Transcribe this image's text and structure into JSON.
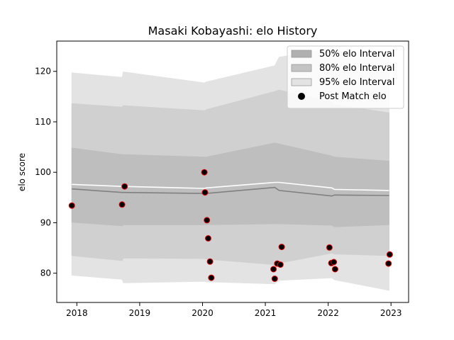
{
  "chart_data": {
    "type": "area",
    "title": "Masaki Kobayashi: elo History",
    "xlabel": "",
    "ylabel": "elo score",
    "xlim": [
      2017.68,
      2023.28
    ],
    "ylim": [
      74.2,
      126.0
    ],
    "x_ticks": [
      2018,
      2019,
      2020,
      2021,
      2022,
      2023
    ],
    "y_ticks": [
      80,
      90,
      100,
      110,
      120
    ],
    "grid": false,
    "legend_position": "top-right",
    "legend": [
      {
        "label": "50% elo Interval",
        "kind": "patch",
        "color": "#b0b0b0"
      },
      {
        "label": "80% elo Interval",
        "kind": "patch",
        "color": "#c4c4c4"
      },
      {
        "label": "95% elo Interval",
        "kind": "patch",
        "color": "#e3e3e3"
      },
      {
        "label": "Post Match elo",
        "kind": "marker",
        "color": "#000000"
      }
    ],
    "band_x": [
      2017.92,
      2018.72,
      2018.74,
      2020.03,
      2020.06,
      2021.15,
      2021.22,
      2022.06,
      2022.1,
      2022.97
    ],
    "bands": [
      {
        "name": "95% elo Interval",
        "color": "#e3e3e3",
        "upper": [
          119.7,
          118.8,
          119.9,
          117.7,
          117.9,
          121.1,
          122.8,
          124.5,
          124.1,
          123.6
        ],
        "lower": [
          79.6,
          78.8,
          78.1,
          78.4,
          78.3,
          77.9,
          78.6,
          79.1,
          78.7,
          76.6
        ]
      },
      {
        "name": "80% elo Interval",
        "color": "#d0d0d0",
        "upper": [
          113.6,
          112.9,
          113.2,
          112.2,
          112.4,
          116.0,
          116.3,
          113.9,
          113.4,
          111.8
        ],
        "lower": [
          83.5,
          82.5,
          83.0,
          82.9,
          82.8,
          81.7,
          82.0,
          84.0,
          83.8,
          83.5
        ]
      },
      {
        "name": "50% elo Interval",
        "color": "#bebebe",
        "upper": [
          104.8,
          103.5,
          103.5,
          103.0,
          103.0,
          105.8,
          105.6,
          103.2,
          103.0,
          102.2
        ],
        "lower": [
          90.1,
          89.4,
          89.6,
          89.6,
          89.6,
          89.8,
          89.8,
          89.5,
          89.2,
          89.6
        ]
      }
    ],
    "lines": [
      {
        "name": "median",
        "color": "#808080",
        "y": [
          96.7,
          96.0,
          96.0,
          95.8,
          95.8,
          97.0,
          96.4,
          95.3,
          95.5,
          95.4
        ]
      },
      {
        "name": "mean",
        "color": "#ffffff",
        "y": [
          97.6,
          97.2,
          97.2,
          96.8,
          96.9,
          98.0,
          98.0,
          96.9,
          96.6,
          96.4
        ]
      }
    ],
    "points": {
      "name": "Post Match elo",
      "x": [
        2017.92,
        2018.72,
        2018.76,
        2020.03,
        2020.04,
        2020.07,
        2020.09,
        2020.12,
        2020.14,
        2021.13,
        2021.15,
        2021.19,
        2021.24,
        2021.26,
        2022.02,
        2022.05,
        2022.09,
        2022.11,
        2022.96,
        2022.98
      ],
      "y": [
        93.4,
        93.6,
        97.2,
        100.0,
        96.0,
        90.5,
        86.9,
        82.3,
        79.1,
        80.8,
        78.9,
        81.9,
        81.7,
        85.2,
        85.1,
        82.0,
        82.2,
        80.8,
        81.9,
        83.7
      ]
    }
  }
}
